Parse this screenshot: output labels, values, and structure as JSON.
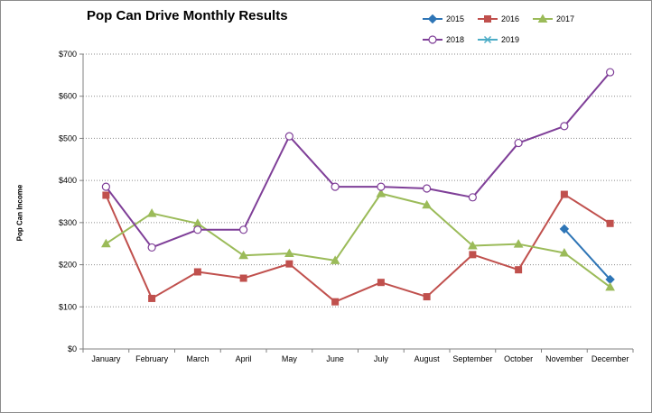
{
  "chart_data": {
    "type": "line",
    "title": "Pop Can Drive Monthly Results",
    "xlabel": "",
    "ylabel": "Pop Can Income",
    "categories": [
      "January",
      "February",
      "March",
      "April",
      "May",
      "June",
      "July",
      "August",
      "September",
      "October",
      "November",
      "December"
    ],
    "ylim": [
      0,
      700
    ],
    "yticks": [
      0,
      100,
      200,
      300,
      400,
      500,
      600,
      700
    ],
    "ytick_labels": [
      "$0",
      "$100",
      "$200",
      "$300",
      "$400",
      "$500",
      "$600",
      "$700"
    ],
    "grid": "horizontal dotted",
    "legend_position": "top-right",
    "series": [
      {
        "name": "2015",
        "color": "#2e75b6",
        "marker": "diamond",
        "values": [
          null,
          null,
          null,
          null,
          null,
          null,
          null,
          null,
          null,
          null,
          285,
          165
        ]
      },
      {
        "name": "2016",
        "color": "#c0504d",
        "marker": "square",
        "values": [
          365,
          120,
          183,
          168,
          202,
          112,
          158,
          124,
          224,
          188,
          367,
          298
        ]
      },
      {
        "name": "2017",
        "color": "#9bbb59",
        "marker": "triangle",
        "values": [
          250,
          322,
          298,
          222,
          227,
          210,
          369,
          342,
          245,
          249,
          228,
          147
        ]
      },
      {
        "name": "2018",
        "color": "#7f3f98",
        "marker": "circle",
        "values": [
          385,
          241,
          283,
          283,
          505,
          385,
          385,
          381,
          360,
          489,
          529,
          657
        ]
      },
      {
        "name": "2019",
        "color": "#4bacc6",
        "marker": "x",
        "values": [
          null,
          null,
          null,
          null,
          null,
          null,
          null,
          null,
          null,
          null,
          null,
          null
        ]
      }
    ]
  }
}
